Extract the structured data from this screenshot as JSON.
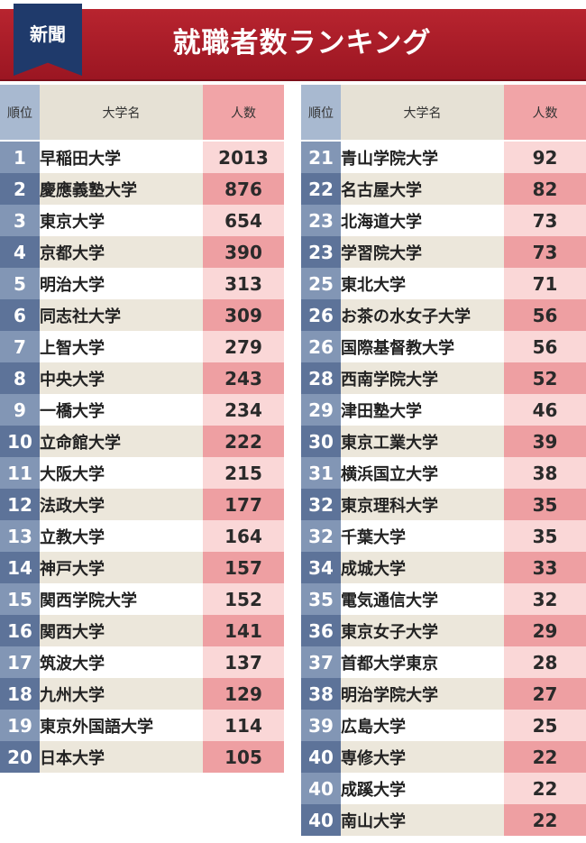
{
  "header": {
    "tag": "新聞",
    "title": "就職者数ランキング"
  },
  "columns": {
    "rank": "順位",
    "university": "大学名",
    "count": "人数"
  },
  "colors": {
    "banner": "#a81c28",
    "tag": "#1f3a6b",
    "rank_cell": "#8296b5",
    "count_cell": "#ee9fa2"
  },
  "left_rows": [
    {
      "rank": "1",
      "university": "早稲田大学",
      "count": "2013"
    },
    {
      "rank": "2",
      "university": "慶應義塾大学",
      "count": "876"
    },
    {
      "rank": "3",
      "university": "東京大学",
      "count": "654"
    },
    {
      "rank": "4",
      "university": "京都大学",
      "count": "390"
    },
    {
      "rank": "5",
      "university": "明治大学",
      "count": "313"
    },
    {
      "rank": "6",
      "university": "同志社大学",
      "count": "309"
    },
    {
      "rank": "7",
      "university": "上智大学",
      "count": "279"
    },
    {
      "rank": "8",
      "university": "中央大学",
      "count": "243"
    },
    {
      "rank": "9",
      "university": "一橋大学",
      "count": "234"
    },
    {
      "rank": "10",
      "university": "立命館大学",
      "count": "222"
    },
    {
      "rank": "11",
      "university": "大阪大学",
      "count": "215"
    },
    {
      "rank": "12",
      "university": "法政大学",
      "count": "177"
    },
    {
      "rank": "13",
      "university": "立教大学",
      "count": "164"
    },
    {
      "rank": "14",
      "university": "神戸大学",
      "count": "157"
    },
    {
      "rank": "15",
      "university": "関西学院大学",
      "count": "152"
    },
    {
      "rank": "16",
      "university": "関西大学",
      "count": "141"
    },
    {
      "rank": "17",
      "university": "筑波大学",
      "count": "137"
    },
    {
      "rank": "18",
      "university": "九州大学",
      "count": "129"
    },
    {
      "rank": "19",
      "university": "東京外国語大学",
      "count": "114"
    },
    {
      "rank": "20",
      "university": "日本大学",
      "count": "105"
    }
  ],
  "right_rows": [
    {
      "rank": "21",
      "university": "青山学院大学",
      "count": "92"
    },
    {
      "rank": "22",
      "university": "名古屋大学",
      "count": "82"
    },
    {
      "rank": "23",
      "university": "北海道大学",
      "count": "73"
    },
    {
      "rank": "23",
      "university": "学習院大学",
      "count": "73"
    },
    {
      "rank": "25",
      "university": "東北大学",
      "count": "71"
    },
    {
      "rank": "26",
      "university": "お茶の水女子大学",
      "count": "56"
    },
    {
      "rank": "26",
      "university": "国際基督教大学",
      "count": "56"
    },
    {
      "rank": "28",
      "university": "西南学院大学",
      "count": "52"
    },
    {
      "rank": "29",
      "university": "津田塾大学",
      "count": "46"
    },
    {
      "rank": "30",
      "university": "東京工業大学",
      "count": "39"
    },
    {
      "rank": "31",
      "university": "横浜国立大学",
      "count": "38"
    },
    {
      "rank": "32",
      "university": "東京理科大学",
      "count": "35"
    },
    {
      "rank": "32",
      "university": "千葉大学",
      "count": "35"
    },
    {
      "rank": "34",
      "university": "成城大学",
      "count": "33"
    },
    {
      "rank": "35",
      "university": "電気通信大学",
      "count": "32"
    },
    {
      "rank": "36",
      "university": "東京女子大学",
      "count": "29"
    },
    {
      "rank": "37",
      "university": "首都大学東京",
      "count": "28"
    },
    {
      "rank": "38",
      "university": "明治学院大学",
      "count": "27"
    },
    {
      "rank": "39",
      "university": "広島大学",
      "count": "25"
    },
    {
      "rank": "40",
      "university": "専修大学",
      "count": "22"
    },
    {
      "rank": "40",
      "university": "成蹊大学",
      "count": "22"
    },
    {
      "rank": "40",
      "university": "南山大学",
      "count": "22"
    }
  ]
}
